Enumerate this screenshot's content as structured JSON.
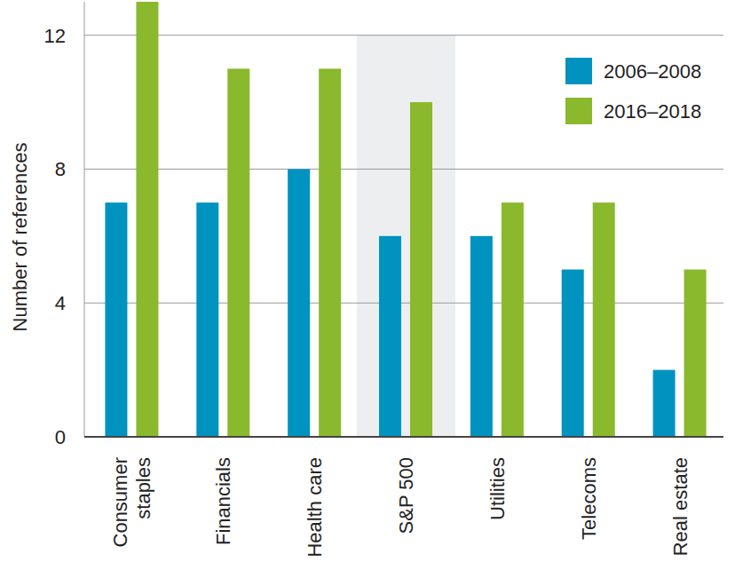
{
  "chart_data": {
    "type": "bar",
    "y_label": "Number of references",
    "categories": [
      "Consumer staples",
      "Financials",
      "Health care",
      "S&P 500",
      "Utilities",
      "Telecoms",
      "Real estate"
    ],
    "series": [
      {
        "name": "2006–2008",
        "color": "#0093c0",
        "values": [
          7,
          7,
          8,
          6,
          6,
          5,
          2
        ]
      },
      {
        "name": "2016–2018",
        "color": "#8ab92d",
        "values": [
          13,
          11,
          11,
          10,
          7,
          7,
          5
        ]
      }
    ],
    "ylim": [
      0,
      13
    ],
    "yticks": [
      0,
      4,
      8,
      12
    ],
    "grid": true,
    "legend": "upper right"
  }
}
